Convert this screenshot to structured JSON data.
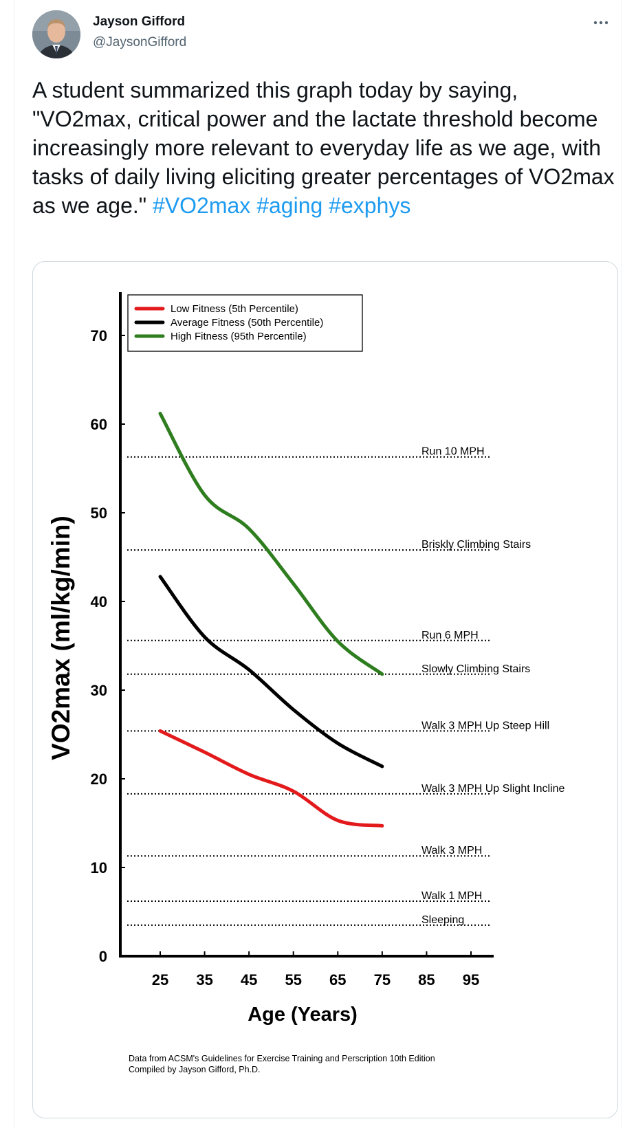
{
  "author": {
    "name": "Jayson Gifford",
    "handle": "@JaysonGifford",
    "avatar_icon": "person-portrait-icon"
  },
  "more_icon": "more-dots-icon",
  "tweet": {
    "text": "A student summarized this graph today by saying, \"VO2max, critical power and the lactate threshold become increasingly more relevant to everyday life as we age, with tasks of daily living eliciting greater percentages of VO2max as we age.\"",
    "hashtags": [
      "#VO2max",
      "#aging",
      "#exphys"
    ],
    "hashtag_color": "#1d9bf0"
  },
  "chart_data": {
    "type": "line",
    "xlabel": "Age (Years)",
    "ylabel": "VO2max (ml/kg/min)",
    "xticks": [
      25,
      35,
      45,
      55,
      65,
      75,
      85,
      95
    ],
    "yticks": [
      0,
      10,
      20,
      30,
      40,
      50,
      60,
      70
    ],
    "xlim": [
      16,
      100
    ],
    "ylim": [
      0,
      75
    ],
    "grid": false,
    "legend_position": "top-left",
    "series": [
      {
        "name": "Low Fitness (5th Percentile)",
        "color": "#e31a1c",
        "x": [
          25,
          35,
          45,
          55,
          65,
          75
        ],
        "y": [
          25.4,
          23.0,
          20.5,
          18.6,
          15.3,
          14.7
        ]
      },
      {
        "name": "Average Fitness (50th Percentile)",
        "color": "#000000",
        "x": [
          25,
          35,
          45,
          55,
          65,
          75
        ],
        "y": [
          42.8,
          36.0,
          32.3,
          27.8,
          24.0,
          21.4
        ]
      },
      {
        "name": "High Fitness (95th Percentile)",
        "color": "#2e7d1e",
        "x": [
          25,
          35,
          45,
          55,
          65,
          75
        ],
        "y": [
          61.2,
          52.0,
          48.2,
          42.0,
          35.5,
          31.8
        ]
      }
    ],
    "reference_lines": [
      {
        "label": "Run 10 MPH",
        "value": 56.3
      },
      {
        "label": "Briskly Climbing Stairs",
        "value": 45.8
      },
      {
        "label": "Run 6 MPH",
        "value": 35.6
      },
      {
        "label": "Slowly Climbing Stairs",
        "value": 31.8
      },
      {
        "label": "Walk 3 MPH Up Steep Hill",
        "value": 25.4
      },
      {
        "label": "Walk 3 MPH Up Slight Incline",
        "value": 18.3
      },
      {
        "label": "Walk 3 MPH",
        "value": 11.3
      },
      {
        "label": "Walk 1 MPH",
        "value": 6.2
      },
      {
        "label": "Sleeping",
        "value": 3.5
      }
    ],
    "footnote": [
      "Data from ACSM's Guidelines for Exercise Training and Perscription 10th Edition",
      "Compiled by Jayson Gifford, Ph.D."
    ]
  }
}
